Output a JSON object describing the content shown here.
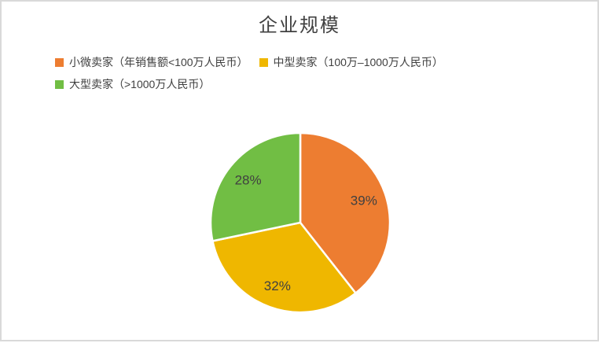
{
  "frame": {
    "background": "#ffffff",
    "border_color": "#d9d9d9"
  },
  "chart_data": {
    "type": "pie",
    "title": "企业规模",
    "legend_position": "top",
    "start_angle_deg": 0,
    "direction": "clockwise",
    "slices": [
      {
        "label": "小微卖家（年销售额<100万人民币）",
        "value": 39,
        "pct_label": "39%",
        "color": "#ED7D31"
      },
      {
        "label": "中型卖家（100万–1000万人民币）",
        "value": 32,
        "pct_label": "32%",
        "color": "#EFB700"
      },
      {
        "label": "大型卖家（>1000万人民币）",
        "value": 28,
        "pct_label": "28%",
        "color": "#71BE44"
      }
    ],
    "title_color": "#404040",
    "legend_text_color": "#404040",
    "label_color": "#404040",
    "separator_color": "#ffffff"
  }
}
